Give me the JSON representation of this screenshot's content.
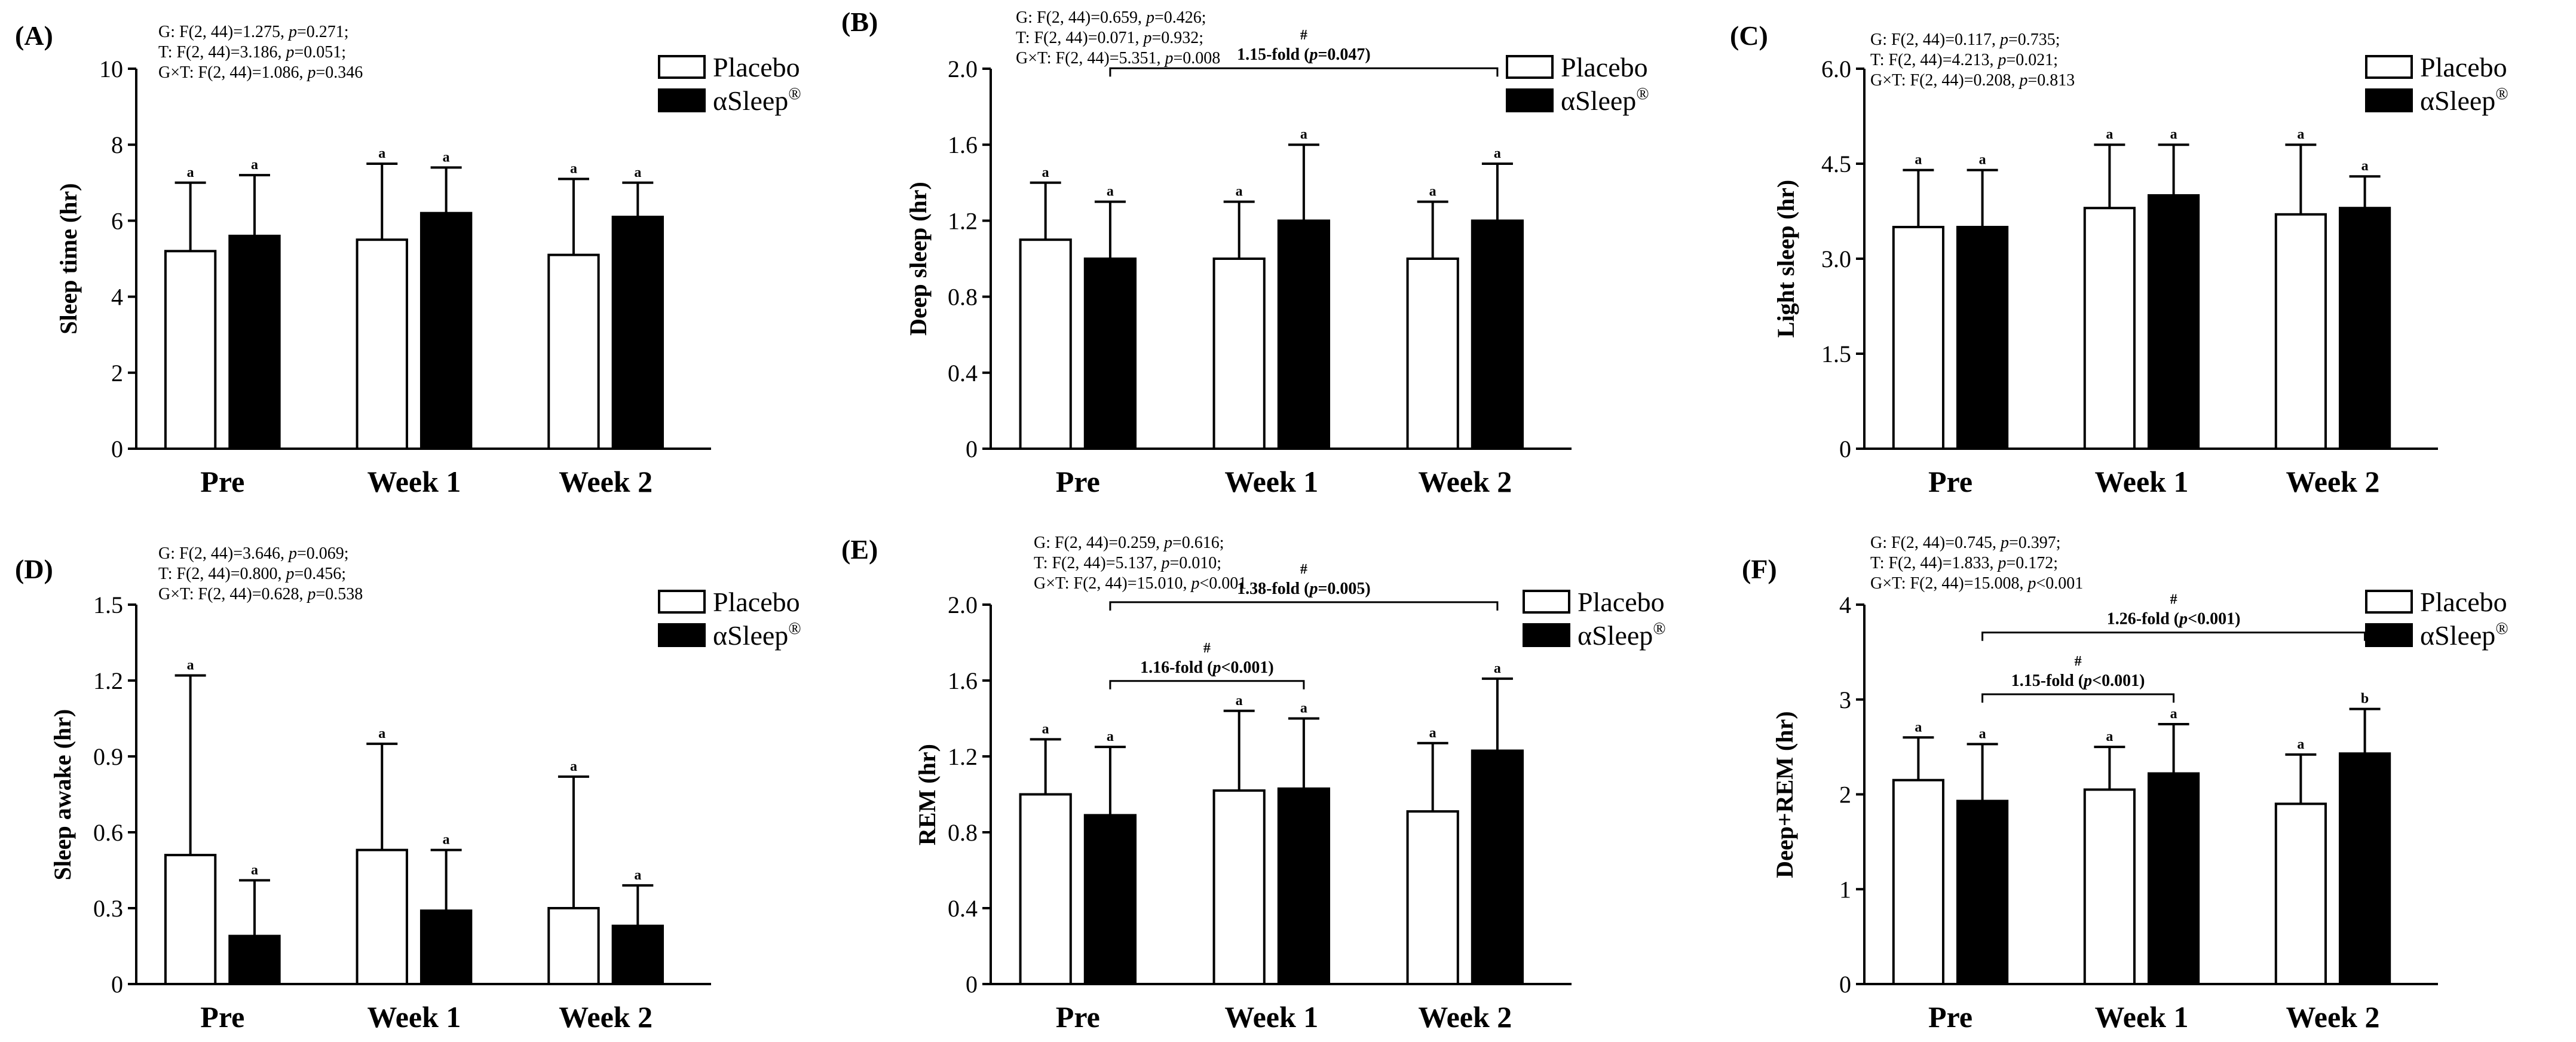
{
  "colors": {
    "placebo_fill": "#ffffff",
    "asleep_fill": "#000000",
    "stroke": "#000000"
  },
  "chart_data": [
    {
      "type": "bar",
      "panel": "(A)",
      "categories": [
        "Pre",
        "Week 1",
        "Week 2"
      ],
      "ylabel": "Sleep time (hr)",
      "ylim": [
        0,
        10
      ],
      "yticks": [
        "0",
        "2",
        "4",
        "6",
        "8",
        "10"
      ],
      "series": [
        {
          "name": "Placebo",
          "values": [
            5.2,
            5.5,
            5.1
          ],
          "sd": [
            1.8,
            2.0,
            2.0
          ],
          "letters": [
            "a",
            "a",
            "a"
          ]
        },
        {
          "name": "αSleep",
          "values": [
            5.6,
            6.2,
            6.1
          ],
          "sd": [
            1.6,
            1.2,
            0.9
          ],
          "letters": [
            "a",
            "a",
            "a"
          ]
        }
      ],
      "stats": [
        {
          "label": "G: F(2, 44)=1.275, ",
          "p": "=0.271;"
        },
        {
          "label": "T: F(2, 44)=3.186, ",
          "p": "=0.051;"
        },
        {
          "label": "G×T: F(2, 44)=1.086, ",
          "p": "=0.346"
        }
      ],
      "comparisons": []
    },
    {
      "type": "bar",
      "panel": "(B)",
      "categories": [
        "Pre",
        "Week 1",
        "Week 2"
      ],
      "ylabel": "Deep sleep (hr)",
      "ylim": [
        0,
        2.0
      ],
      "yticks": [
        "0",
        "0.4",
        "0.8",
        "1.2",
        "1.6",
        "2.0"
      ],
      "series": [
        {
          "name": "Placebo",
          "values": [
            1.1,
            1.0,
            1.0
          ],
          "sd": [
            0.3,
            0.3,
            0.3
          ],
          "letters": [
            "a",
            "a",
            "a"
          ]
        },
        {
          "name": "αSleep",
          "values": [
            1.0,
            1.2,
            1.2
          ],
          "sd": [
            0.3,
            0.4,
            0.3
          ],
          "letters": [
            "a",
            "a",
            "a"
          ]
        }
      ],
      "stats": [
        {
          "label": "G: F(2, 44)=0.659, ",
          "p": "=0.426;"
        },
        {
          "label": "T: F(2, 44)=0.071, ",
          "p": "=0.932;"
        },
        {
          "label": "G×T: F(2, 44)=5.351, ",
          "p": "=0.008"
        }
      ],
      "comparisons": [
        {
          "from": 0,
          "to": 2,
          "mark": "#",
          "pre": "1.15-fold (",
          "p": "=0.047)"
        }
      ]
    },
    {
      "type": "bar",
      "panel": "(C)",
      "categories": [
        "Pre",
        "Week 1",
        "Week 2"
      ],
      "ylabel": "Light sleep (hr)",
      "ylim": [
        0,
        6.0
      ],
      "yticks": [
        "0",
        "1.5",
        "3.0",
        "4.5",
        "6.0"
      ],
      "series": [
        {
          "name": "Placebo",
          "values": [
            3.5,
            3.8,
            3.7
          ],
          "sd": [
            0.9,
            1.0,
            1.1
          ],
          "letters": [
            "a",
            "a",
            "a"
          ]
        },
        {
          "name": "αSleep",
          "values": [
            3.5,
            4.0,
            3.8
          ],
          "sd": [
            0.9,
            0.8,
            0.5
          ],
          "letters": [
            "a",
            "a",
            "a"
          ]
        }
      ],
      "stats": [
        {
          "label": "G: F(2, 44)=0.117, ",
          "p": "=0.735;"
        },
        {
          "label": "T: F(2, 44)=4.213, ",
          "p": "=0.021;"
        },
        {
          "label": "G×T: F(2, 44)=0.208, ",
          "p": "=0.813"
        }
      ],
      "comparisons": []
    },
    {
      "type": "bar",
      "panel": "(D)",
      "categories": [
        "Pre",
        "Week 1",
        "Week 2"
      ],
      "ylabel": "Sleep awake (hr)",
      "ylim": [
        0,
        1.5
      ],
      "yticks": [
        "0",
        "0.3",
        "0.6",
        "0.9",
        "1.2",
        "1.5"
      ],
      "series": [
        {
          "name": "Placebo",
          "values": [
            0.51,
            0.53,
            0.3
          ],
          "sd": [
            0.71,
            0.42,
            0.52
          ],
          "letters": [
            "a",
            "a",
            "a"
          ]
        },
        {
          "name": "αSleep",
          "values": [
            0.19,
            0.29,
            0.23
          ],
          "sd": [
            0.22,
            0.24,
            0.16
          ],
          "letters": [
            "a",
            "a",
            "a"
          ]
        }
      ],
      "stats": [
        {
          "label": "G: F(2, 44)=3.646, ",
          "p": "=0.069;"
        },
        {
          "label": "T: F(2, 44)=0.800, ",
          "p": "=0.456;"
        },
        {
          "label": "G×T: F(2, 44)=0.628, ",
          "p": "=0.538"
        }
      ],
      "comparisons": []
    },
    {
      "type": "bar",
      "panel": "(E)",
      "categories": [
        "Pre",
        "Week 1",
        "Week 2"
      ],
      "ylabel": "REM (hr)",
      "ylim": [
        0,
        2.0
      ],
      "yticks": [
        "0",
        "0.4",
        "0.8",
        "1.2",
        "1.6",
        "2.0"
      ],
      "series": [
        {
          "name": "Placebo",
          "values": [
            1.0,
            1.02,
            0.91
          ],
          "sd": [
            0.29,
            0.42,
            0.36
          ],
          "letters": [
            "a",
            "a",
            "a"
          ]
        },
        {
          "name": "αSleep",
          "values": [
            0.89,
            1.03,
            1.23
          ],
          "sd": [
            0.36,
            0.37,
            0.38
          ],
          "letters": [
            "a",
            "a",
            "a"
          ]
        }
      ],
      "stats": [
        {
          "label": "G: F(2, 44)=0.259, ",
          "p": "=0.616;"
        },
        {
          "label": "T: F(2, 44)=5.137, ",
          "p": "=0.010;"
        },
        {
          "label": "G×T: F(2, 44)=15.010, ",
          "p": "<0.001"
        }
      ],
      "comparisons": [
        {
          "from": 0,
          "to": 1,
          "mark": "#",
          "pre": "1.16-fold (",
          "p": "<0.001)"
        },
        {
          "from": 0,
          "to": 2,
          "mark": "#",
          "pre": "1.38-fold (",
          "p": "=0.005)"
        }
      ]
    },
    {
      "type": "bar",
      "panel": "(F)",
      "categories": [
        "Pre",
        "Week 1",
        "Week 2"
      ],
      "ylabel": "Deep+REM (hr)",
      "ylim": [
        0,
        4
      ],
      "yticks": [
        "0",
        "1",
        "2",
        "3",
        "4"
      ],
      "series": [
        {
          "name": "Placebo",
          "values": [
            2.15,
            2.05,
            1.9
          ],
          "sd": [
            0.45,
            0.45,
            0.52
          ],
          "letters": [
            "a",
            "a",
            "a"
          ]
        },
        {
          "name": "αSleep",
          "values": [
            1.93,
            2.22,
            2.43
          ],
          "sd": [
            0.6,
            0.52,
            0.47
          ],
          "letters": [
            "a",
            "a",
            "b"
          ]
        }
      ],
      "stats": [
        {
          "label": "G: F(2, 44)=0.745, ",
          "p": "=0.397;"
        },
        {
          "label": "T: F(2, 44)=1.833, ",
          "p": "=0.172;"
        },
        {
          "label": "G×T: F(2, 44)=15.008, ",
          "p": "<0.001"
        }
      ],
      "comparisons": [
        {
          "from": 0,
          "to": 1,
          "mark": "#",
          "pre": "1.15-fold (",
          "p": "<0.001)"
        },
        {
          "from": 0,
          "to": 2,
          "mark": "#",
          "pre": "1.26-fold (",
          "p": "<0.001)"
        }
      ]
    }
  ],
  "legend": {
    "placebo": "Placebo",
    "asleep": "αSleep",
    "asleep_mark": "®"
  },
  "p_symbol": "p"
}
